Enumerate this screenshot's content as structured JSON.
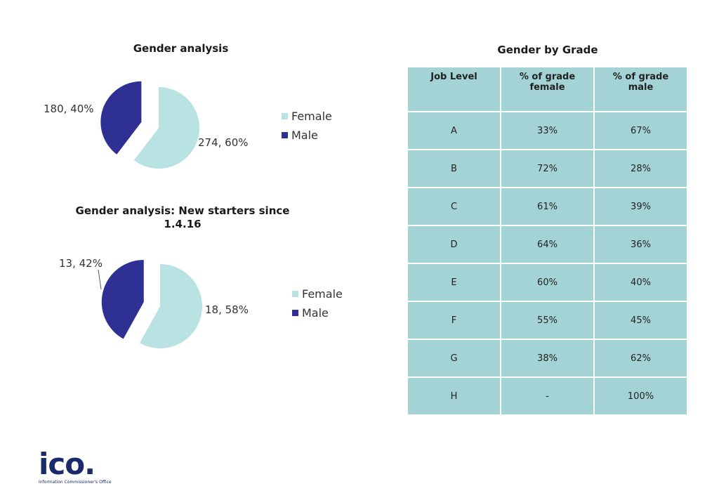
{
  "chart_data": [
    {
      "type": "pie",
      "title": "Gender analysis",
      "slices": [
        {
          "name": "Female",
          "value": 274,
          "percent": 60,
          "label": "274, 60%",
          "color": "#b9e2e3"
        },
        {
          "name": "Male",
          "value": 180,
          "percent": 40,
          "label": "180, 40%",
          "color": "#2f3093"
        }
      ],
      "legend": [
        "Female",
        "Male"
      ],
      "legend_position": "right"
    },
    {
      "type": "pie",
      "title": "Gender analysis: New starters since 1.4.16",
      "slices": [
        {
          "name": "Female",
          "value": 18,
          "percent": 58,
          "label": "18, 58%",
          "color": "#b9e2e3"
        },
        {
          "name": "Male",
          "value": 13,
          "percent": 42,
          "label": "13, 42%",
          "color": "#2f3093"
        }
      ],
      "legend": [
        "Female",
        "Male"
      ],
      "legend_position": "right"
    },
    {
      "type": "table",
      "title": "Gender by Grade",
      "columns": [
        "Job Level",
        "% of grade female",
        "% of grade male"
      ],
      "rows": [
        [
          "A",
          "33%",
          "67%"
        ],
        [
          "B",
          "72%",
          "28%"
        ],
        [
          "C",
          "61%",
          "39%"
        ],
        [
          "D",
          "64%",
          "36%"
        ],
        [
          "E",
          "60%",
          "40%"
        ],
        [
          "F",
          "55%",
          "45%"
        ],
        [
          "G",
          "38%",
          "62%"
        ],
        [
          "H",
          "-",
          "100%"
        ]
      ]
    }
  ],
  "logo": {
    "mark": "ico.",
    "subtitle": "Information Commissioner's Office"
  }
}
